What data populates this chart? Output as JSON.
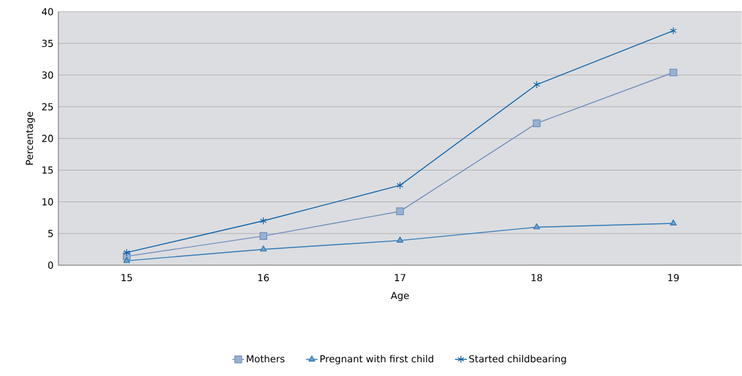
{
  "chart_data": {
    "type": "line",
    "xlabel": "Age",
    "ylabel": "Percentage",
    "categories": [
      "15",
      "16",
      "17",
      "18",
      "19"
    ],
    "series": [
      {
        "name": "Mothers",
        "color": "#6e8fbd",
        "marker": "square",
        "values": [
          1.4,
          4.6,
          8.5,
          22.4,
          30.4
        ]
      },
      {
        "name": "Pregnant with first child",
        "color": "#2f78b5",
        "marker": "triangle",
        "values": [
          0.7,
          2.5,
          3.9,
          6.0,
          6.6
        ]
      },
      {
        "name": "Started childbearing",
        "color": "#0a62a8",
        "marker": "cross",
        "values": [
          2.0,
          7.0,
          12.6,
          28.5,
          37.0
        ]
      }
    ],
    "ylim": [
      0,
      40
    ],
    "yticks": [
      0,
      5,
      10,
      15,
      20,
      25,
      30,
      35,
      40
    ],
    "grid": "y",
    "legend": "bottom"
  }
}
